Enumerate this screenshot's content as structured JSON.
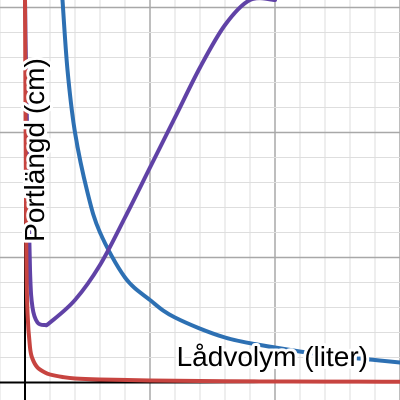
{
  "chart_data": {
    "type": "line",
    "xlabel": "Lådvolym (liter)",
    "ylabel": "Portlängd (cm)",
    "xlim": [
      -0.1,
      1.5
    ],
    "ylim": [
      -0.07,
      1.53
    ],
    "grid": true,
    "series": [
      {
        "color": "#2d70b3",
        "x": [
          0.15,
          0.17,
          0.2,
          0.25,
          0.3,
          0.4,
          0.5,
          0.6,
          0.8,
          1.0,
          1.2,
          1.4,
          1.5
        ],
        "y": [
          1.53,
          1.25,
          1.0,
          0.76,
          0.6,
          0.42,
          0.33,
          0.26,
          0.18,
          0.14,
          0.11,
          0.09,
          0.08
        ]
      },
      {
        "color": "#6042a6",
        "x": [
          0.0,
          0.01,
          0.02,
          0.03,
          0.05,
          0.08,
          0.1,
          0.2,
          0.3,
          0.4,
          0.5,
          0.6,
          0.7,
          0.8,
          0.9,
          1.0
        ],
        "y": [
          1.53,
          0.9,
          0.45,
          0.3,
          0.24,
          0.23,
          0.24,
          0.33,
          0.47,
          0.66,
          0.86,
          1.06,
          1.26,
          1.43,
          1.53,
          1.53
        ]
      },
      {
        "color": "#c74440",
        "x": [
          0.0,
          0.005,
          0.01,
          0.02,
          0.03,
          0.05,
          0.08,
          0.1,
          0.15,
          0.2,
          0.3,
          0.5,
          0.8,
          1.0,
          1.2,
          1.5
        ],
        "y": [
          1.53,
          0.56,
          0.28,
          0.14,
          0.095,
          0.06,
          0.04,
          0.032,
          0.022,
          0.016,
          0.012,
          0.008,
          0.005,
          0.004,
          0.0035,
          0.003
        ]
      }
    ]
  }
}
